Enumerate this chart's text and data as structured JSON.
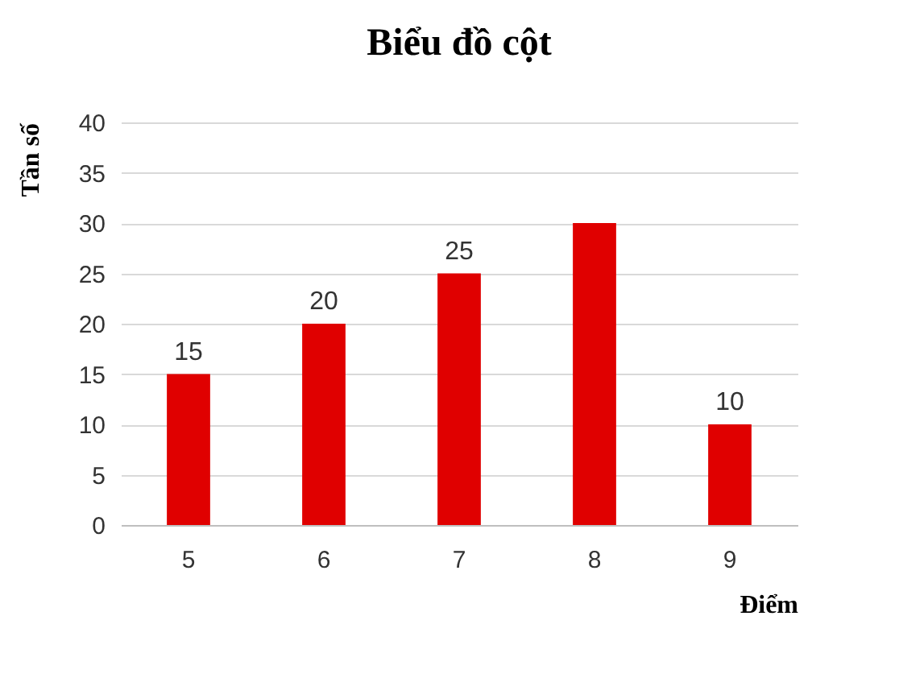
{
  "chart_data": {
    "type": "bar",
    "title": "Biểu đồ cột",
    "xlabel": "Điểm",
    "ylabel": "Tần số",
    "categories": [
      "5",
      "6",
      "7",
      "8",
      "9"
    ],
    "values": [
      15,
      20,
      25,
      30,
      10
    ],
    "value_labels": [
      "15",
      "20",
      "25",
      null,
      "10"
    ],
    "color": "#e00000",
    "ylim": [
      0,
      40
    ],
    "yticks": [
      0,
      5,
      10,
      15,
      20,
      25,
      30,
      35,
      40
    ],
    "grid": "y"
  }
}
